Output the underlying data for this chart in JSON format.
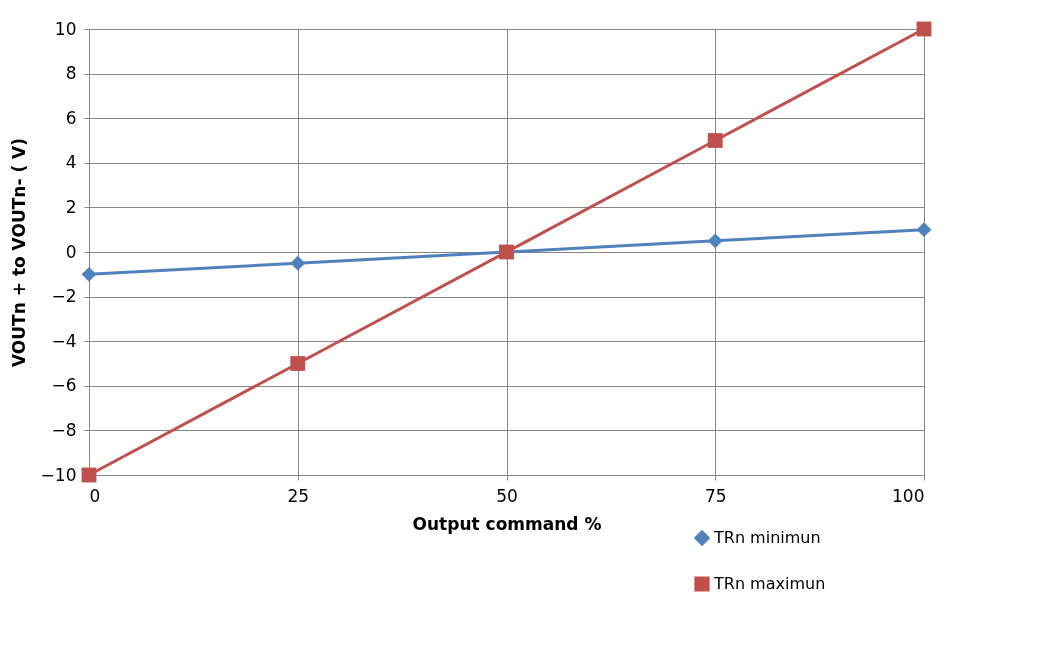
{
  "chart_data": {
    "type": "line",
    "xlabel": "Output command %",
    "ylabel": "VOUTn +   to VOUTn-  ( V)",
    "x": [
      0,
      25,
      50,
      75,
      100
    ],
    "series": [
      {
        "name": "TRn minimun",
        "color": "#4f81bd",
        "marker": "diamond",
        "values": [
          -1,
          -0.5,
          0,
          0.5,
          1
        ]
      },
      {
        "name": "TRn maximun",
        "color": "#c0504d",
        "marker": "square",
        "values": [
          -10,
          -5,
          0,
          5,
          10
        ]
      }
    ],
    "xlim": [
      0,
      100
    ],
    "xticks": [
      0,
      25,
      50,
      75,
      100
    ],
    "ylim": [
      -10,
      10
    ],
    "yticks": [
      -10,
      -8,
      -6,
      -4,
      -2,
      0,
      2,
      4,
      6,
      8,
      10
    ],
    "grid": true,
    "legend": "bottom right",
    "line_style": "solid"
  }
}
